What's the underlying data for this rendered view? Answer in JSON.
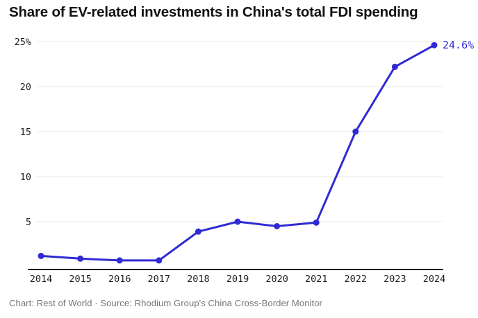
{
  "header": {
    "title": "Share of EV-related investments in China's total FDI spending"
  },
  "footer": {
    "text": "Chart: Rest of World · Source: Rhodium Group's China Cross-Border Monitor"
  },
  "chart_data": {
    "type": "line",
    "title": "Share of EV-related investments in China's total FDI spending",
    "x": [
      "2014",
      "2015",
      "2016",
      "2017",
      "2018",
      "2019",
      "2020",
      "2021",
      "2022",
      "2023",
      "2024"
    ],
    "series": [
      {
        "name": "Share of EV-related investments in total FDI (%)",
        "values": [
          1.2,
          0.9,
          0.7,
          0.7,
          3.9,
          5.0,
          4.5,
          4.9,
          15.0,
          22.2,
          24.6
        ]
      }
    ],
    "xlabel": "",
    "ylabel": "",
    "ylim": [
      0,
      26
    ],
    "yticks": [
      5,
      10,
      15,
      20,
      25
    ],
    "ytick_labels": [
      "5",
      "10",
      "15",
      "20",
      "25%"
    ],
    "grid": "horizontal",
    "legend_position": "none",
    "end_label": "24.6%",
    "line_color": "#2f2ad3",
    "grid_color": "#e8e8e8",
    "axis_color": "#0a0a0a",
    "tick_text_color": "#1f1f1f",
    "annotation_color": "#2f2ad3"
  }
}
